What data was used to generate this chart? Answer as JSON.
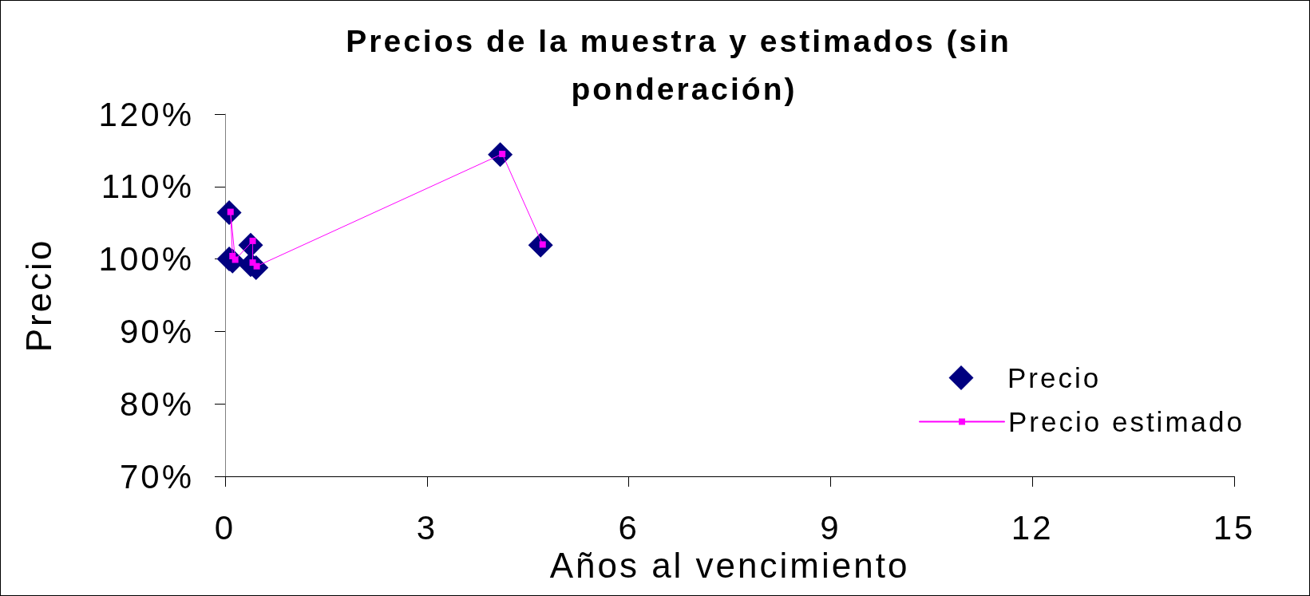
{
  "chart_data": {
    "type": "scatter",
    "title": "Precios de la muestra y estimados (sin ponderación)",
    "xlabel": "Años al vencimiento",
    "ylabel": "Precio",
    "series": [
      {
        "name": "Precio",
        "marker": "diamond",
        "color": "#000080",
        "x": [
          0.06,
          0.06,
          0.11,
          0.38,
          0.38,
          0.46,
          4.09,
          4.69
        ],
        "values": [
          100.0,
          106.4,
          99.7,
          101.9,
          99.2,
          98.8,
          114.4,
          101.9
        ]
      },
      {
        "name": "Precio estimado",
        "type": "line",
        "marker": "square",
        "color": "#ff00ff",
        "x": [
          0.11,
          0.08,
          0.15,
          0.41,
          0.41,
          0.47,
          4.12,
          4.72
        ],
        "values": [
          100.4,
          106.5,
          99.9,
          102.5,
          99.5,
          99.0,
          114.5,
          102.0
        ]
      }
    ],
    "xlim": [
      0,
      15
    ],
    "xticks": [
      0,
      3,
      6,
      9,
      12,
      15
    ],
    "ylim": [
      70,
      120
    ],
    "yticks": [
      {
        "value": 70,
        "label": "70%"
      },
      {
        "value": 80,
        "label": "80%"
      },
      {
        "value": 90,
        "label": "90%"
      },
      {
        "value": 100,
        "label": "100%"
      },
      {
        "value": 110,
        "label": "110%"
      },
      {
        "value": 120,
        "label": "120%"
      }
    ],
    "grid": false,
    "legend": "right"
  }
}
